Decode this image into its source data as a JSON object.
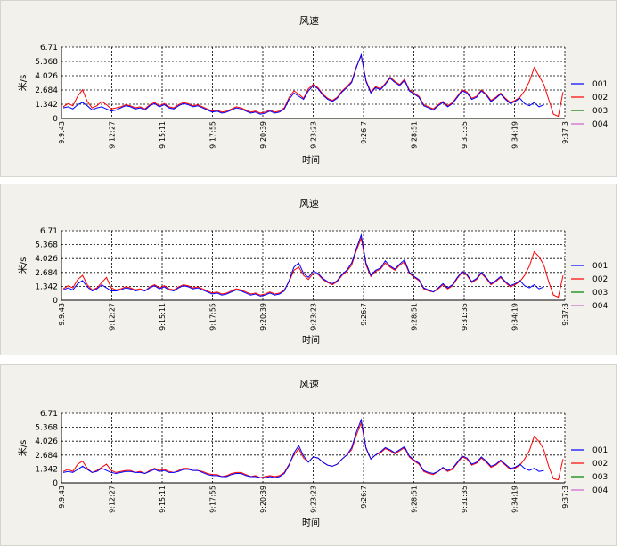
{
  "chart_data": [
    {
      "type": "line",
      "title": "风速",
      "xlabel": "时间",
      "ylabel": "米/s",
      "y_ticks": [
        "6.71",
        "5.368",
        "4.026",
        "2.684",
        "1.342",
        "0"
      ],
      "y_tick_values": [
        6.71,
        5.368,
        4.026,
        2.684,
        1.342,
        0
      ],
      "ylim": [
        0,
        6.71
      ],
      "x_ticks": [
        "9:9:43",
        "9:12:27",
        "9:15:11",
        "9:17:55",
        "9:20:39",
        "9:23:23",
        "9:26:7",
        "9:28:51",
        "9:31:35",
        "9:34:19",
        "9:37:3"
      ],
      "grid": true,
      "legend_position": "right",
      "series": [
        {
          "name": "001",
          "color": "#0000ff",
          "values": [
            1.0,
            1.1,
            0.9,
            1.3,
            1.5,
            1.2,
            0.8,
            1.0,
            1.1,
            0.9,
            0.7,
            0.8,
            1.0,
            1.2,
            1.1,
            0.9,
            1.0,
            0.8,
            1.2,
            1.4,
            1.1,
            1.3,
            1.0,
            0.9,
            1.2,
            1.4,
            1.3,
            1.1,
            1.2,
            1.0,
            0.8,
            0.6,
            0.7,
            0.5,
            0.6,
            0.8,
            1.0,
            0.9,
            0.7,
            0.5,
            0.6,
            0.4,
            0.5,
            0.7,
            0.5,
            0.6,
            0.9,
            1.8,
            2.4,
            2.1,
            1.8,
            2.6,
            3.1,
            2.8,
            2.2,
            1.8,
            1.6,
            1.9,
            2.5,
            2.9,
            3.4,
            4.8,
            6.0,
            3.5,
            2.4,
            2.9,
            2.7,
            3.2,
            3.8,
            3.4,
            3.1,
            3.6,
            2.6,
            2.3,
            2.0,
            1.2,
            1.0,
            0.8,
            1.2,
            1.5,
            1.1,
            1.4,
            2.0,
            2.6,
            2.4,
            1.8,
            2.0,
            2.6,
            2.2,
            1.6,
            1.9,
            2.3,
            1.8,
            1.4,
            1.6,
            1.9,
            1.4,
            1.2,
            1.5,
            1.1,
            1.3
          ]
        },
        {
          "name": "002",
          "color": "#ff0000",
          "values": [
            1.1,
            1.4,
            1.2,
            2.1,
            2.7,
            1.6,
            1.0,
            1.2,
            1.6,
            1.3,
            0.9,
            1.0,
            1.1,
            1.3,
            1.2,
            1.0,
            1.1,
            0.9,
            1.3,
            1.5,
            1.2,
            1.4,
            1.1,
            1.0,
            1.3,
            1.5,
            1.4,
            1.2,
            1.3,
            1.1,
            0.9,
            0.7,
            0.8,
            0.6,
            0.7,
            0.9,
            1.1,
            1.0,
            0.8,
            0.6,
            0.7,
            0.5,
            0.6,
            0.8,
            0.6,
            0.7,
            1.0,
            2.0,
            2.6,
            2.3,
            1.9,
            2.8,
            3.2,
            2.9,
            2.3,
            1.9,
            1.7,
            2.0,
            2.6,
            3.0,
            3.5,
            4.9,
            5.9,
            3.6,
            2.5,
            3.0,
            2.8,
            3.3,
            3.9,
            3.5,
            3.2,
            3.7,
            2.7,
            2.4,
            2.1,
            1.3,
            1.1,
            0.9,
            1.3,
            1.6,
            1.2,
            1.5,
            2.1,
            2.7,
            2.5,
            1.9,
            2.1,
            2.7,
            2.3,
            1.7,
            2.0,
            2.4,
            1.9,
            1.5,
            1.7,
            2.0,
            2.6,
            3.5,
            4.8,
            4.0,
            3.2,
            1.8,
            0.4,
            0.2,
            2.5
          ]
        },
        {
          "name": "003",
          "color": "#008000",
          "values": []
        },
        {
          "name": "004",
          "color": "#cc66cc",
          "values": []
        }
      ]
    },
    {
      "type": "line",
      "title": "风速",
      "xlabel": "时间",
      "ylabel": "米/s",
      "y_ticks": [
        "6.71",
        "5.368",
        "4.026",
        "2.684",
        "1.342",
        "0"
      ],
      "y_tick_values": [
        6.71,
        5.368,
        4.026,
        2.684,
        1.342,
        0
      ],
      "ylim": [
        0,
        6.71
      ],
      "x_ticks": [
        "9:9:43",
        "9:12:27",
        "9:15:11",
        "9:17:55",
        "9:20:39",
        "9:23:23",
        "9:26:7",
        "9:28:51",
        "9:31:35",
        "9:34:19",
        "9:37:3"
      ],
      "grid": true,
      "legend_position": "right",
      "series": [
        {
          "name": "001",
          "color": "#0000ff",
          "values": [
            1.0,
            1.2,
            1.0,
            1.6,
            1.9,
            1.3,
            0.9,
            1.1,
            1.5,
            1.2,
            0.9,
            0.9,
            1.0,
            1.2,
            1.1,
            0.9,
            1.0,
            0.9,
            1.2,
            1.4,
            1.1,
            1.3,
            1.0,
            0.9,
            1.2,
            1.4,
            1.3,
            1.1,
            1.2,
            1.0,
            0.8,
            0.6,
            0.7,
            0.5,
            0.6,
            0.8,
            1.0,
            0.9,
            0.7,
            0.5,
            0.6,
            0.4,
            0.5,
            0.7,
            0.5,
            0.6,
            0.9,
            1.9,
            3.2,
            3.6,
            2.6,
            2.2,
            2.8,
            2.6,
            2.1,
            1.8,
            1.6,
            1.9,
            2.5,
            2.9,
            3.6,
            5.0,
            6.3,
            3.6,
            2.4,
            2.9,
            3.1,
            3.8,
            3.3,
            3.0,
            3.5,
            3.9,
            2.7,
            2.3,
            2.0,
            1.2,
            1.0,
            0.8,
            1.2,
            1.6,
            1.2,
            1.5,
            2.2,
            2.8,
            2.5,
            1.8,
            2.1,
            2.7,
            2.2,
            1.6,
            1.9,
            2.3,
            1.8,
            1.4,
            1.6,
            1.9,
            1.4,
            1.2,
            1.5,
            1.1,
            1.3
          ]
        },
        {
          "name": "002",
          "color": "#ff0000",
          "values": [
            1.1,
            1.4,
            1.2,
            2.0,
            2.4,
            1.5,
            1.0,
            1.2,
            1.7,
            2.2,
            1.2,
            1.0,
            1.1,
            1.3,
            1.2,
            1.0,
            1.1,
            0.9,
            1.3,
            1.5,
            1.2,
            1.4,
            1.1,
            1.0,
            1.3,
            1.5,
            1.4,
            1.2,
            1.3,
            1.1,
            0.9,
            0.7,
            0.8,
            0.6,
            0.7,
            0.9,
            1.1,
            1.0,
            0.8,
            0.6,
            0.7,
            0.5,
            0.6,
            0.8,
            0.6,
            0.7,
            1.0,
            1.8,
            2.9,
            3.2,
            2.4,
            2.0,
            2.6,
            2.5,
            2.0,
            1.7,
            1.5,
            1.8,
            2.4,
            2.8,
            3.4,
            4.8,
            6.0,
            3.4,
            2.3,
            2.8,
            3.0,
            3.6,
            3.2,
            2.9,
            3.4,
            3.7,
            2.6,
            2.2,
            1.9,
            1.1,
            0.9,
            0.8,
            1.1,
            1.5,
            1.1,
            1.4,
            2.1,
            2.7,
            2.4,
            1.7,
            2.0,
            2.6,
            2.1,
            1.5,
            1.8,
            2.2,
            1.7,
            1.3,
            1.5,
            1.8,
            2.4,
            3.3,
            4.7,
            4.2,
            3.4,
            1.8,
            0.5,
            0.3,
            2.4
          ]
        },
        {
          "name": "003",
          "color": "#008000",
          "values": []
        },
        {
          "name": "004",
          "color": "#cc66cc",
          "values": []
        }
      ]
    },
    {
      "type": "line",
      "title": "风速",
      "xlabel": "时间",
      "ylabel": "米/s",
      "y_ticks": [
        "6.71",
        "5.368",
        "4.026",
        "2.684",
        "1.342",
        "0"
      ],
      "y_tick_values": [
        6.71,
        5.368,
        4.026,
        2.684,
        1.342,
        0
      ],
      "ylim": [
        0,
        6.71
      ],
      "x_ticks": [
        "9:9:43",
        "9:12:27",
        "9:15:11",
        "9:17:55",
        "9:20:39",
        "9:23:23",
        "9:26:7",
        "9:28:51",
        "9:31:35",
        "9:34:19",
        "9:37:3"
      ],
      "grid": true,
      "legend_position": "right",
      "series": [
        {
          "name": "001",
          "color": "#0000ff",
          "values": [
            1.0,
            1.1,
            1.0,
            1.3,
            1.6,
            1.3,
            1.0,
            1.1,
            1.4,
            1.2,
            1.0,
            0.9,
            1.0,
            1.1,
            1.1,
            1.0,
            1.0,
            0.9,
            1.1,
            1.3,
            1.1,
            1.2,
            1.0,
            1.0,
            1.1,
            1.3,
            1.3,
            1.2,
            1.2,
            1.0,
            0.8,
            0.7,
            0.7,
            0.6,
            0.6,
            0.8,
            0.9,
            0.9,
            0.7,
            0.6,
            0.6,
            0.5,
            0.5,
            0.6,
            0.5,
            0.6,
            0.9,
            1.7,
            2.9,
            3.6,
            2.6,
            2.0,
            2.5,
            2.4,
            2.0,
            1.7,
            1.6,
            1.8,
            2.3,
            2.7,
            3.4,
            4.9,
            6.1,
            3.4,
            2.3,
            2.7,
            3.0,
            3.4,
            3.2,
            2.9,
            3.2,
            3.5,
            2.6,
            2.2,
            1.9,
            1.2,
            1.0,
            0.9,
            1.1,
            1.5,
            1.2,
            1.4,
            2.0,
            2.6,
            2.4,
            1.8,
            2.0,
            2.5,
            2.1,
            1.6,
            1.8,
            2.2,
            1.8,
            1.4,
            1.5,
            1.8,
            1.4,
            1.2,
            1.4,
            1.1,
            1.2
          ]
        },
        {
          "name": "002",
          "color": "#ff0000",
          "values": [
            1.1,
            1.3,
            1.1,
            1.8,
            2.1,
            1.4,
            1.0,
            1.2,
            1.5,
            1.8,
            1.2,
            1.0,
            1.1,
            1.2,
            1.2,
            1.0,
            1.1,
            0.9,
            1.2,
            1.4,
            1.2,
            1.3,
            1.1,
            1.0,
            1.2,
            1.4,
            1.4,
            1.2,
            1.2,
            1.1,
            0.9,
            0.8,
            0.8,
            0.6,
            0.7,
            0.9,
            1.0,
            1.0,
            0.8,
            0.6,
            0.7,
            0.5,
            0.6,
            0.7,
            0.6,
            0.7,
            1.0,
            1.8,
            2.7,
            3.3,
            2.4,
            2.0,
            2.5,
            2.4,
            2.0,
            1.7,
            1.6,
            1.8,
            2.3,
            2.7,
            3.2,
            4.6,
            5.8,
            3.3,
            2.3,
            2.7,
            2.9,
            3.3,
            3.1,
            2.8,
            3.1,
            3.4,
            2.5,
            2.1,
            1.8,
            1.1,
            0.9,
            0.8,
            1.1,
            1.4,
            1.1,
            1.3,
            1.9,
            2.5,
            2.3,
            1.7,
            1.9,
            2.4,
            2.0,
            1.5,
            1.7,
            2.1,
            1.7,
            1.3,
            1.4,
            1.7,
            2.3,
            3.1,
            4.5,
            4.0,
            3.2,
            1.6,
            0.4,
            0.3,
            2.3
          ]
        },
        {
          "name": "003",
          "color": "#008000",
          "values": []
        },
        {
          "name": "004",
          "color": "#cc66cc",
          "values": []
        }
      ]
    }
  ]
}
